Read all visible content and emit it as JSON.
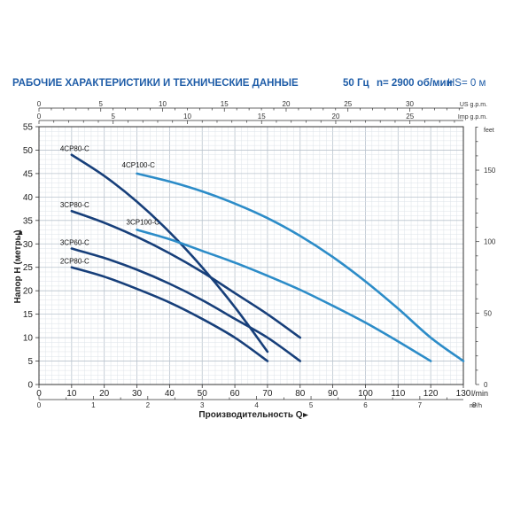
{
  "header": {
    "title": "РАБОЧИЕ ХАРАКТЕРИСТИКИ И ТЕХНИЧЕСКИЕ ДАННЫЕ",
    "freq": "50 Гц",
    "speed": "n= 2900 об/мин",
    "hs": "HS= 0 м"
  },
  "chart_data": {
    "type": "line",
    "xlabel": "Производительность Q",
    "ylabel": "Напор H (метры)",
    "x_unit": "l/min",
    "xlim": [
      0,
      130
    ],
    "ylim": [
      0,
      55
    ],
    "x_ticks": [
      0,
      10,
      20,
      30,
      40,
      50,
      60,
      70,
      80,
      90,
      100,
      110,
      120,
      130
    ],
    "y_ticks": [
      0,
      5,
      10,
      15,
      20,
      25,
      30,
      35,
      40,
      45,
      50,
      55
    ],
    "grid": true,
    "top_axes": [
      {
        "unit": "US g.p.m.",
        "lim": [
          0,
          34.34
        ],
        "ticks": [
          0,
          5,
          10,
          15,
          20,
          25,
          30
        ]
      },
      {
        "unit": "Imp g.p.m.",
        "lim": [
          0,
          28.6
        ],
        "ticks": [
          0,
          5,
          10,
          15,
          20,
          25
        ]
      }
    ],
    "bottom_axis2": {
      "unit": "m³/h",
      "lim": [
        0,
        7.8
      ],
      "ticks": [
        0,
        1,
        2,
        3,
        4,
        5,
        6,
        7,
        8
      ]
    },
    "right_axis": {
      "unit": "feet",
      "lim": [
        0,
        180.4
      ],
      "ticks": [
        0,
        50,
        100,
        150
      ]
    },
    "series": [
      {
        "name": "4CP80-C",
        "color": "#173f7a",
        "x": [
          10,
          20,
          30,
          40,
          50,
          60,
          70
        ],
        "y": [
          49,
          44.5,
          39,
          32.5,
          25,
          16.5,
          7
        ]
      },
      {
        "name": "4CP100-C",
        "color": "#2c8cc8",
        "x": [
          30,
          40,
          50,
          60,
          70,
          80,
          90,
          100,
          110,
          120,
          130
        ],
        "y": [
          45,
          43.3,
          41.2,
          38.6,
          35.5,
          31.7,
          27.2,
          22,
          16.2,
          10,
          5
        ]
      },
      {
        "name": "3CP80-C",
        "color": "#173f7a",
        "x": [
          10,
          20,
          30,
          40,
          50,
          60,
          70,
          80
        ],
        "y": [
          37,
          34.5,
          31.5,
          28,
          24,
          19.5,
          15,
          10
        ]
      },
      {
        "name": "3CP100-C",
        "color": "#2c8cc8",
        "x": [
          30,
          40,
          50,
          60,
          70,
          80,
          90,
          100,
          110,
          120
        ],
        "y": [
          33,
          31,
          28.5,
          26,
          23.2,
          20.2,
          16.8,
          13.2,
          9.2,
          5
        ]
      },
      {
        "name": "3CP60-C",
        "color": "#173f7a",
        "x": [
          10,
          20,
          30,
          40,
          50,
          60,
          70,
          80
        ],
        "y": [
          29,
          27,
          24.5,
          21.5,
          18,
          14,
          10,
          5
        ]
      },
      {
        "name": "2CP80-C",
        "color": "#173f7a",
        "x": [
          10,
          20,
          30,
          40,
          50,
          60,
          70
        ],
        "y": [
          25,
          23,
          20.4,
          17.5,
          14,
          10,
          5
        ]
      }
    ]
  }
}
